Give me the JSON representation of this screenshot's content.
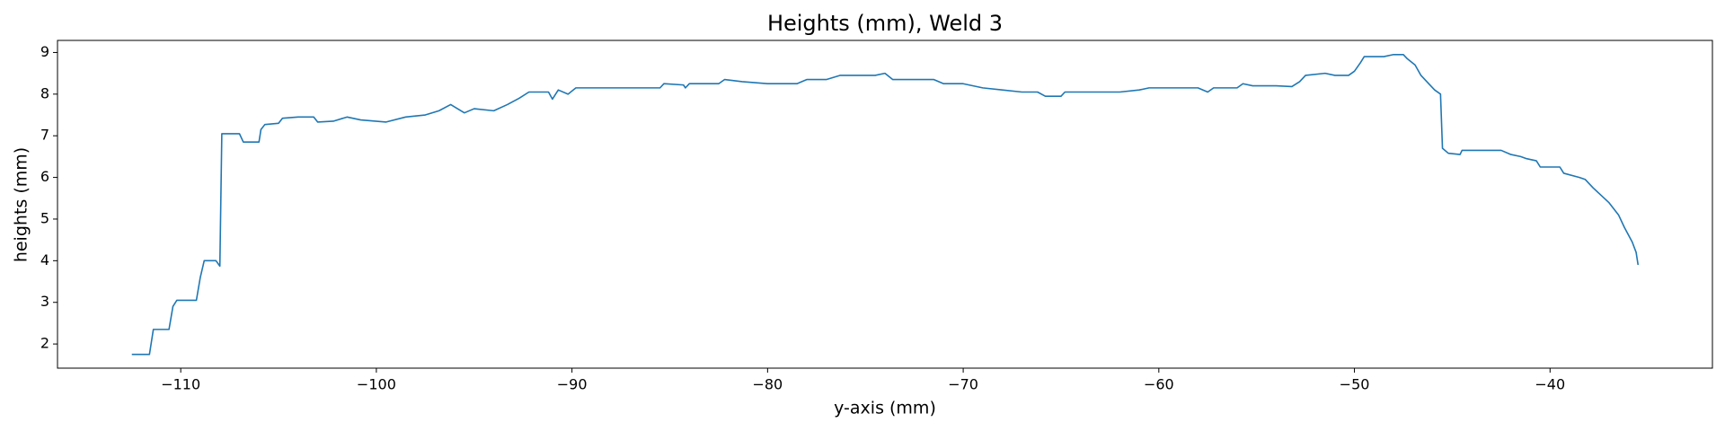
{
  "chart_data": {
    "type": "line",
    "title": "Heights (mm), Weld 3",
    "xlabel": "y-axis (mm)",
    "ylabel": "heights (mm)",
    "x": [
      -112.5,
      -111.6,
      -111.4,
      -110.6,
      -110.4,
      -110.2,
      -109.2,
      -109.0,
      -108.8,
      -108.2,
      -108.0,
      -107.9,
      -107.0,
      -106.8,
      -106.0,
      -105.9,
      -105.7,
      -105.0,
      -104.8,
      -104.0,
      -103.2,
      -103.0,
      -102.2,
      -101.5,
      -100.8,
      -99.5,
      -98.5,
      -97.5,
      -96.8,
      -96.2,
      -95.5,
      -95.0,
      -94.0,
      -93.3,
      -92.7,
      -92.2,
      -91.2,
      -91.0,
      -90.7,
      -90.2,
      -89.8,
      -88.0,
      -87.0,
      -85.5,
      -85.3,
      -84.3,
      -84.2,
      -84.0,
      -82.5,
      -82.2,
      -81.3,
      -80.0,
      -78.5,
      -78.0,
      -77.0,
      -76.3,
      -74.5,
      -74.0,
      -73.6,
      -73.0,
      -71.5,
      -71.0,
      -70.0,
      -69.0,
      -68.0,
      -67.0,
      -66.2,
      -65.8,
      -65.0,
      -64.8,
      -62.0,
      -61.0,
      -60.5,
      -58.0,
      -57.5,
      -57.2,
      -56.0,
      -55.7,
      -55.2,
      -54.0,
      -53.2,
      -52.8,
      -52.5,
      -51.5,
      -51.0,
      -50.3,
      -50.0,
      -49.7,
      -49.5,
      -48.5,
      -48.0,
      -47.5,
      -47.3,
      -46.9,
      -46.6,
      -46.3,
      -45.9,
      -45.6,
      -45.5,
      -45.2,
      -44.6,
      -44.5,
      -43.0,
      -42.5,
      -42.0,
      -41.5,
      -41.2,
      -40.7,
      -40.5,
      -39.5,
      -39.3,
      -38.5,
      -38.2,
      -37.8,
      -37.0,
      -36.5,
      -36.2,
      -35.8,
      -35.6,
      -35.5
    ],
    "series": [
      {
        "color": "#1f77b4",
        "values": [
          1.75,
          1.75,
          2.35,
          2.35,
          2.9,
          3.05,
          3.05,
          3.6,
          4.0,
          4.0,
          3.87,
          7.05,
          7.05,
          6.85,
          6.85,
          7.15,
          7.27,
          7.3,
          7.42,
          7.45,
          7.45,
          7.33,
          7.35,
          7.45,
          7.38,
          7.33,
          7.45,
          7.5,
          7.6,
          7.75,
          7.55,
          7.65,
          7.6,
          7.75,
          7.9,
          8.05,
          8.05,
          7.88,
          8.1,
          8.0,
          8.15,
          8.15,
          8.15,
          8.15,
          8.25,
          8.22,
          8.15,
          8.25,
          8.25,
          8.35,
          8.3,
          8.25,
          8.25,
          8.35,
          8.35,
          8.45,
          8.45,
          8.5,
          8.35,
          8.35,
          8.35,
          8.25,
          8.25,
          8.15,
          8.1,
          8.05,
          8.05,
          7.95,
          7.95,
          8.05,
          8.05,
          8.1,
          8.15,
          8.15,
          8.05,
          8.15,
          8.15,
          8.25,
          8.2,
          8.2,
          8.18,
          8.3,
          8.45,
          8.5,
          8.45,
          8.45,
          8.55,
          8.75,
          8.9,
          8.9,
          8.95,
          8.95,
          8.85,
          8.7,
          8.45,
          8.3,
          8.1,
          8.0,
          6.7,
          6.58,
          6.55,
          6.65,
          6.65,
          6.65,
          6.55,
          6.5,
          6.45,
          6.4,
          6.25,
          6.25,
          6.1,
          6.0,
          5.95,
          5.75,
          5.4,
          5.1,
          4.8,
          4.45,
          4.2,
          3.9
        ]
      }
    ],
    "xlim": [
      -116.3,
      -31.7
    ],
    "ylim": [
      1.42,
      9.29
    ],
    "xticks": [
      {
        "value": -110,
        "label": "−110"
      },
      {
        "value": -100,
        "label": "−100"
      },
      {
        "value": -90,
        "label": "−90"
      },
      {
        "value": -80,
        "label": "−80"
      },
      {
        "value": -70,
        "label": "−70"
      },
      {
        "value": -60,
        "label": "−60"
      },
      {
        "value": -50,
        "label": "−50"
      },
      {
        "value": -40,
        "label": "−40"
      }
    ],
    "yticks": [
      2,
      3,
      4,
      5,
      6,
      7,
      8,
      9
    ]
  }
}
